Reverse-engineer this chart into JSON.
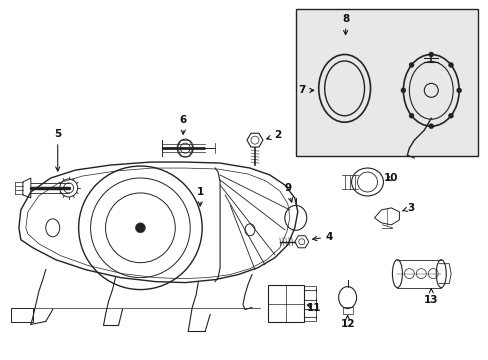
{
  "bg_color": "#ffffff",
  "line_color": "#222222",
  "inset_bg": "#e0e0e0",
  "figsize": [
    4.89,
    3.6
  ],
  "dpi": 100,
  "labels": {
    "1": {
      "lpos": [
        200,
        198
      ],
      "tpos": [
        200,
        218
      ]
    },
    "2": {
      "lpos": [
        280,
        148
      ],
      "tpos": [
        262,
        148
      ]
    },
    "3": {
      "lpos": [
        398,
        208
      ],
      "tpos": [
        382,
        208
      ]
    },
    "4": {
      "lpos": [
        330,
        242
      ],
      "tpos": [
        312,
        242
      ]
    },
    "5": {
      "lpos": [
        58,
        148
      ],
      "tpos": [
        58,
        168
      ]
    },
    "6": {
      "lpos": [
        185,
        128
      ],
      "tpos": [
        185,
        148
      ]
    },
    "7": {
      "lpos": [
        302,
        88
      ],
      "tpos": [
        318,
        88
      ]
    },
    "8": {
      "lpos": [
        340,
        18
      ],
      "tpos": [
        340,
        38
      ]
    },
    "9": {
      "lpos": [
        295,
        188
      ],
      "tpos": [
        295,
        208
      ]
    },
    "10": {
      "lpos": [
        388,
        178
      ],
      "tpos": [
        370,
        178
      ]
    },
    "11": {
      "lpos": [
        305,
        308
      ],
      "tpos": [
        290,
        298
      ]
    },
    "12": {
      "lpos": [
        348,
        318
      ],
      "tpos": [
        348,
        308
      ]
    },
    "13": {
      "lpos": [
        420,
        268
      ],
      "tpos": [
        420,
        278
      ]
    }
  }
}
